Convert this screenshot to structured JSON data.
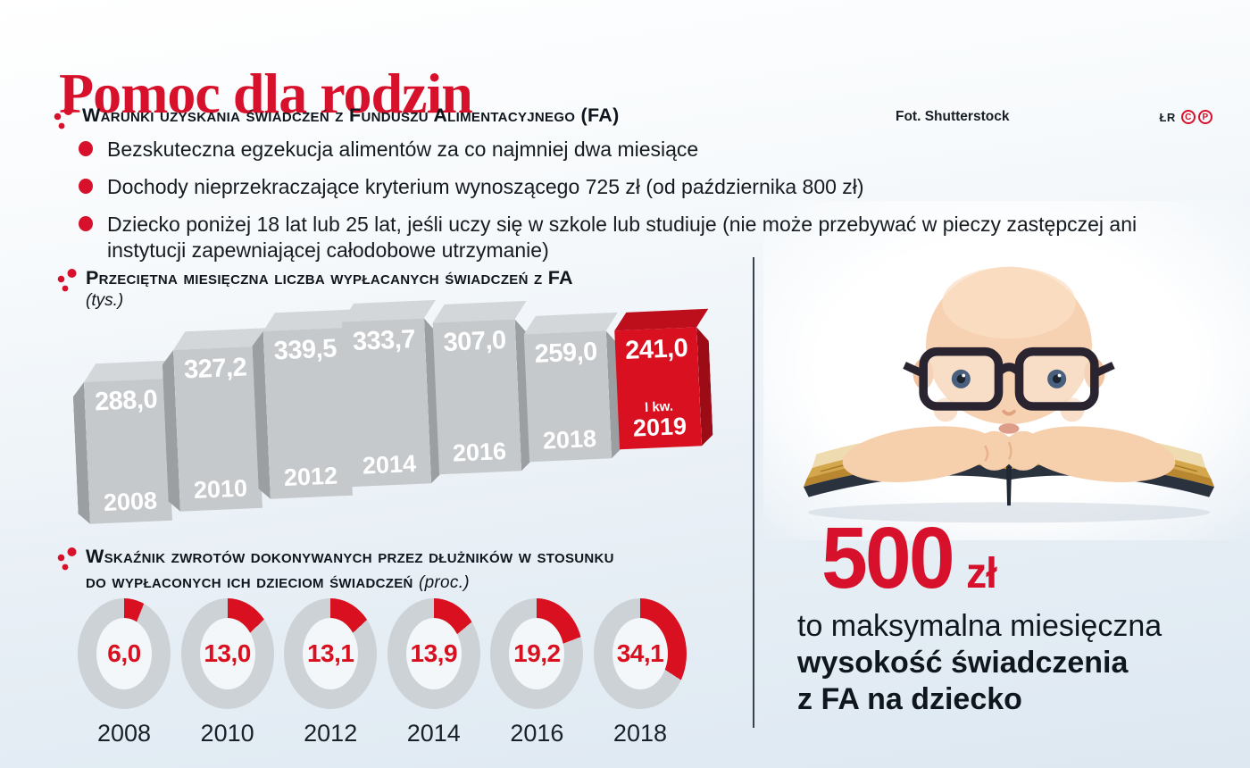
{
  "page": {
    "title": "Pomoc dla rodzin",
    "photo_credit": "Fot. Shutterstock",
    "author_initials": "ŁR",
    "badges": {
      "c": "C",
      "p": "P"
    }
  },
  "colors": {
    "accent_red": "#d7112b",
    "chart_red": "#d8101f",
    "bar_gray": "#c6c9cc",
    "ring_gray": "#cdd2d6",
    "text_dark": "#10161d",
    "divider": "#39434f"
  },
  "conditions": {
    "heading": "Warunki uzyskania świadczeń z Funduszu Alimentacyjnego (FA)",
    "items": [
      "Bezskuteczna egzekucja alimentów za co najmniej dwa miesiące",
      "Dochody nieprzekraczające kryterium wynoszącego 725 zł (od października 800 zł)",
      "Dziecko poniżej 18 lat lub 25 lat, jeśli uczy się w szkole lub studiuje (nie może przebywać w pieczy zastępczej ani instytucji zapewniającej całodobowe utrzymanie)"
    ]
  },
  "bar_section": {
    "heading": "Przeciętna miesięczna liczba wypłacanych świadczeń z FA",
    "unit": "(tys.)"
  },
  "donut_section": {
    "heading_line1": "Wskaźnik zwrotów dokonywanych przez dłużników w stosunku",
    "heading_line2": "do wypłaconych ich dzieciom świadczeń",
    "unit": "(proc.)"
  },
  "highlight": {
    "amount": "500",
    "currency": "zł",
    "line1": "to maksymalna miesięczna",
    "line2": "wysokość świadczenia",
    "line3": "z FA na dziecko"
  },
  "chart_data": [
    {
      "type": "bar",
      "title": "Przeciętna miesięczna liczba wypłacanych świadczeń z FA",
      "unit": "tys.",
      "categories": [
        "2008",
        "2010",
        "2012",
        "2014",
        "2016",
        "2018",
        "2019"
      ],
      "category_sublabels": [
        "",
        "",
        "",
        "",
        "",
        "",
        "I kw."
      ],
      "values": [
        288.0,
        327.2,
        339.5,
        333.7,
        307.0,
        259.0,
        241.0
      ],
      "display_values": [
        "288,0",
        "327,2",
        "339,5",
        "333,7",
        "307,0",
        "259,0",
        "241,0"
      ],
      "highlight_index": 6,
      "bar_color": "#c6c9cc",
      "highlight_color": "#d8101f",
      "legend": "none",
      "grid": false
    },
    {
      "type": "pie",
      "subtype": "donut-multiples",
      "title": "Wskaźnik zwrotów dokonywanych przez dłużników w stosunku do wypłaconych ich dzieciom świadczeń",
      "unit": "proc.",
      "categories": [
        "2008",
        "2010",
        "2012",
        "2014",
        "2016",
        "2018"
      ],
      "values": [
        6.0,
        13.0,
        13.1,
        13.9,
        19.2,
        34.1
      ],
      "display_values": [
        "6,0",
        "13,0",
        "13,1",
        "13,9",
        "19,2",
        "34,1"
      ],
      "max": 100,
      "arc_color": "#d8101f",
      "ring_color": "#cdd2d6",
      "legend": "none"
    }
  ]
}
